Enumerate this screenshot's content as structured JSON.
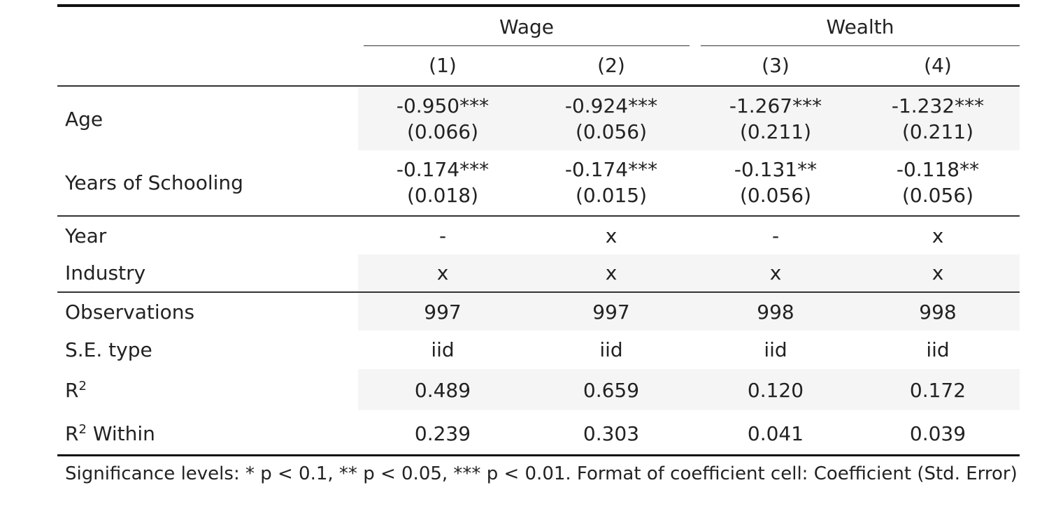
{
  "groups": [
    {
      "label": "Wage"
    },
    {
      "label": "Wealth"
    }
  ],
  "models": [
    "(1)",
    "(2)",
    "(3)",
    "(4)"
  ],
  "coef_rows": [
    {
      "label": "Age",
      "cells": [
        {
          "coef": "-0.950***",
          "se": "(0.066)"
        },
        {
          "coef": "-0.924***",
          "se": "(0.056)"
        },
        {
          "coef": "-1.267***",
          "se": "(0.211)"
        },
        {
          "coef": "-1.232***",
          "se": "(0.211)"
        }
      ]
    },
    {
      "label": "Years of Schooling",
      "cells": [
        {
          "coef": "-0.174***",
          "se": "(0.018)"
        },
        {
          "coef": "-0.174***",
          "se": "(0.015)"
        },
        {
          "coef": "-0.131**",
          "se": "(0.056)"
        },
        {
          "coef": "-0.118**",
          "se": "(0.056)"
        }
      ]
    }
  ],
  "fe_rows": [
    {
      "label": "Year",
      "values": [
        "-",
        "x",
        "-",
        "x"
      ]
    },
    {
      "label": "Industry",
      "values": [
        "x",
        "x",
        "x",
        "x"
      ]
    }
  ],
  "stat_rows": [
    {
      "label": "Observations",
      "values": [
        "997",
        "997",
        "998",
        "998"
      ]
    },
    {
      "label": "S.E. type",
      "values": [
        "iid",
        "iid",
        "iid",
        "iid"
      ]
    },
    {
      "label": "R",
      "sup": "2",
      "suffix": "",
      "values": [
        "0.489",
        "0.659",
        "0.120",
        "0.172"
      ]
    },
    {
      "label": "R",
      "sup": "2",
      "suffix": " Within",
      "values": [
        "0.239",
        "0.303",
        "0.041",
        "0.039"
      ]
    }
  ],
  "footnote": "Significance levels: * p < 0.1, ** p < 0.05, *** p < 0.01. Format of coefficient cell: Coefficient (Std. Error)"
}
